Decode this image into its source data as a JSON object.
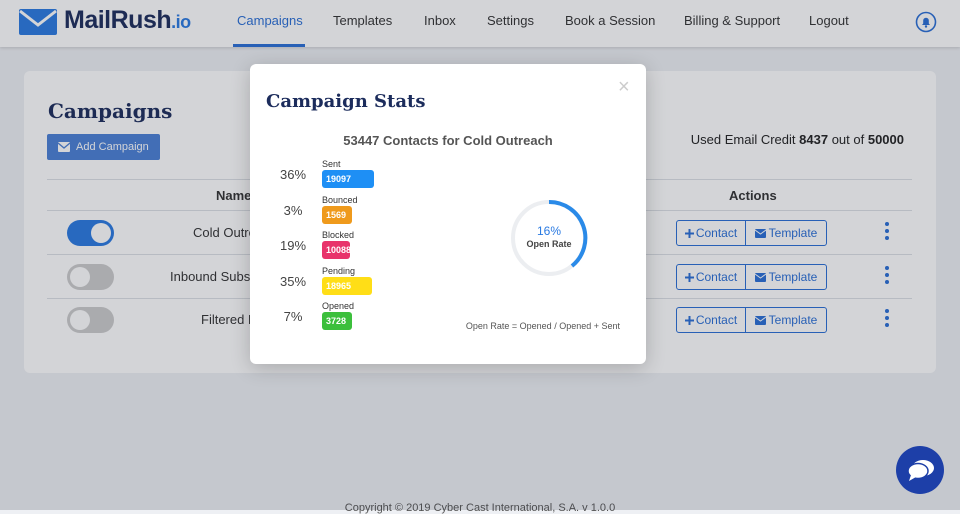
{
  "navbar": {
    "logo": "MailRush",
    "logo_suffix": ".io",
    "links": [
      "Campaigns",
      "Templates",
      "Inbox",
      "Settings",
      "Book a Session",
      "Billing & Support",
      "Logout"
    ]
  },
  "page": {
    "title": "Campaigns",
    "add_button": "Add Campaign",
    "credit": {
      "label": "Used Email Credit",
      "used": 8437,
      "separator": "out of",
      "total": 50000
    },
    "table": {
      "headers": [
        "Name",
        "Actions"
      ],
      "rows": [
        {
          "name": "Cold Outre"
        },
        {
          "name": "Inbound Subse"
        },
        {
          "name": "Filtered L"
        }
      ],
      "contact_button": "Contact",
      "template_button": "Template"
    }
  },
  "modal": {
    "title": "Campaign Stats",
    "close": "×",
    "subtitle": "53447 Contacts for Cold Outreach",
    "stats": [
      {
        "percent": "36%",
        "label": "Sent",
        "count": 19097
      },
      {
        "percent": "3%",
        "label": "Bounced",
        "count": 1569
      },
      {
        "percent": "19%",
        "label": "Blocked",
        "count": 10088
      },
      {
        "percent": "35%",
        "label": "Pending",
        "count": 18965
      },
      {
        "percent": "7%",
        "label": "Opened",
        "count": 3728
      }
    ],
    "open_rate": "16%",
    "open_rate_label": "Open Rate",
    "note": "Open Rate = Opened / Opened + Sent"
  },
  "footer": {
    "copyright": "Copyright © 2019 Cyber Cast International, S.A. v 1.0.0"
  }
}
